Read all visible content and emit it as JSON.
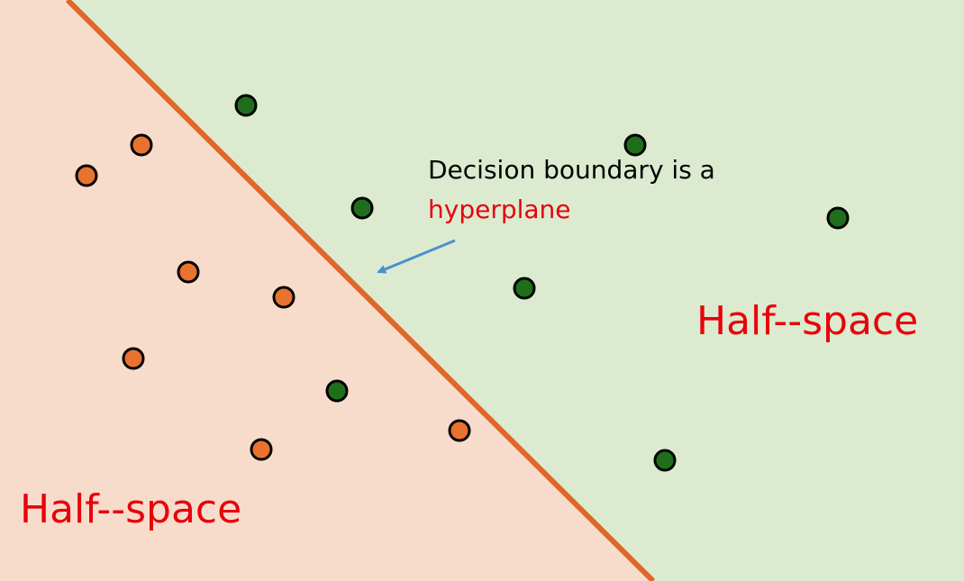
{
  "annotation": {
    "line1": "Decision boundary is a",
    "line2": "hyperplane"
  },
  "regions": {
    "right_label": "Half--space",
    "left_label": "Half--space"
  }
}
